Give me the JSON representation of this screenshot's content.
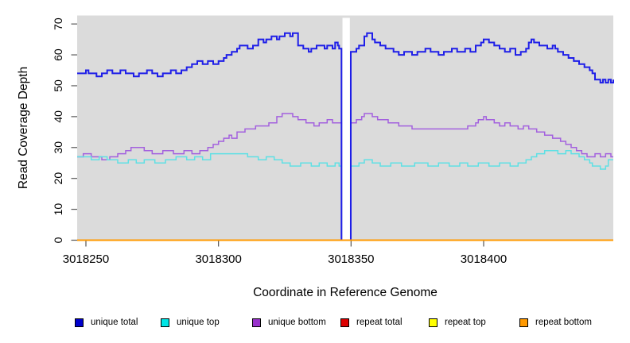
{
  "chart_data": {
    "type": "line",
    "subtype": "step",
    "title": "",
    "xlabel": "Coordinate in Reference Genome",
    "ylabel": "Read Coverage Depth",
    "xlim": [
      3018246.7,
      3018448.9
    ],
    "ylim": [
      0,
      73
    ],
    "x_ticks": [
      3018250,
      3018300,
      3018350,
      3018400
    ],
    "y_ticks": [
      0,
      10,
      20,
      30,
      40,
      50,
      60,
      70
    ],
    "grid": false,
    "legend_position": "bottom",
    "plot_bg": "#DBDBDB",
    "gap": {
      "x_start": 3018346.4,
      "x_end": 3018349.9,
      "note": "white no-data band; unique series drop to 0 at its edges"
    },
    "series": [
      {
        "name": "unique total",
        "line_color": "#1E1EE8",
        "legend_color": "#0000CD",
        "width": 2,
        "steps": [
          [
            3018246.7,
            54
          ],
          [
            3018250,
            55
          ],
          [
            3018251,
            54
          ],
          [
            3018254,
            53
          ],
          [
            3018256,
            54
          ],
          [
            3018258,
            55
          ],
          [
            3018260,
            54
          ],
          [
            3018263,
            55
          ],
          [
            3018265,
            54
          ],
          [
            3018268,
            53
          ],
          [
            3018270,
            54
          ],
          [
            3018273,
            55
          ],
          [
            3018275,
            54
          ],
          [
            3018277,
            53
          ],
          [
            3018279,
            54
          ],
          [
            3018282,
            55
          ],
          [
            3018284,
            54
          ],
          [
            3018286,
            55
          ],
          [
            3018288,
            56
          ],
          [
            3018290,
            57
          ],
          [
            3018292,
            58
          ],
          [
            3018294,
            57
          ],
          [
            3018296,
            58
          ],
          [
            3018298,
            57
          ],
          [
            3018300,
            58
          ],
          [
            3018302,
            59
          ],
          [
            3018303,
            60
          ],
          [
            3018305,
            61
          ],
          [
            3018307,
            62
          ],
          [
            3018308,
            63
          ],
          [
            3018311,
            62
          ],
          [
            3018313,
            63
          ],
          [
            3018315,
            65
          ],
          [
            3018317,
            64
          ],
          [
            3018318,
            65
          ],
          [
            3018320,
            66
          ],
          [
            3018322,
            65
          ],
          [
            3018323,
            66
          ],
          [
            3018325,
            67
          ],
          [
            3018327,
            66
          ],
          [
            3018328,
            67
          ],
          [
            3018330,
            63
          ],
          [
            3018332,
            62
          ],
          [
            3018334,
            61
          ],
          [
            3018335,
            62
          ],
          [
            3018337,
            63
          ],
          [
            3018340,
            62
          ],
          [
            3018341,
            63
          ],
          [
            3018343,
            62
          ],
          [
            3018344,
            64
          ],
          [
            3018345,
            63
          ],
          [
            3018345.5,
            62
          ],
          [
            3018346.4,
            0
          ],
          [
            3018349.9,
            61
          ],
          [
            3018352,
            62
          ],
          [
            3018353,
            63
          ],
          [
            3018355,
            66
          ],
          [
            3018356,
            67
          ],
          [
            3018358,
            65
          ],
          [
            3018359,
            64
          ],
          [
            3018361,
            63
          ],
          [
            3018363,
            62
          ],
          [
            3018366,
            61
          ],
          [
            3018368,
            60
          ],
          [
            3018370,
            61
          ],
          [
            3018373,
            60
          ],
          [
            3018375,
            61
          ],
          [
            3018378,
            62
          ],
          [
            3018380,
            61
          ],
          [
            3018383,
            60
          ],
          [
            3018385,
            61
          ],
          [
            3018388,
            62
          ],
          [
            3018390,
            61
          ],
          [
            3018393,
            62
          ],
          [
            3018395,
            61
          ],
          [
            3018397,
            63
          ],
          [
            3018399,
            64
          ],
          [
            3018400,
            65
          ],
          [
            3018402,
            64
          ],
          [
            3018404,
            63
          ],
          [
            3018406,
            62
          ],
          [
            3018408,
            61
          ],
          [
            3018410,
            62
          ],
          [
            3018412,
            60
          ],
          [
            3018414,
            61
          ],
          [
            3018416,
            62
          ],
          [
            3018417,
            64
          ],
          [
            3018418,
            65
          ],
          [
            3018419,
            64
          ],
          [
            3018421,
            63
          ],
          [
            3018424,
            62
          ],
          [
            3018426,
            63
          ],
          [
            3018427,
            62
          ],
          [
            3018428,
            61
          ],
          [
            3018430,
            60
          ],
          [
            3018432,
            59
          ],
          [
            3018434,
            58
          ],
          [
            3018436,
            57
          ],
          [
            3018438,
            56
          ],
          [
            3018440,
            55
          ],
          [
            3018441,
            54
          ],
          [
            3018442,
            52
          ],
          [
            3018444,
            51
          ],
          [
            3018445,
            52
          ],
          [
            3018446,
            51
          ],
          [
            3018447,
            52
          ],
          [
            3018448,
            51
          ],
          [
            3018448.9,
            52
          ]
        ]
      },
      {
        "name": "unique top",
        "line_color": "#5FE0E4",
        "legend_color": "#00E5E5",
        "width": 1.5,
        "steps": [
          [
            3018246.7,
            27
          ],
          [
            3018252,
            26
          ],
          [
            3018255,
            27
          ],
          [
            3018258,
            26
          ],
          [
            3018262,
            25
          ],
          [
            3018266,
            26
          ],
          [
            3018269,
            25
          ],
          [
            3018272,
            26
          ],
          [
            3018276,
            25
          ],
          [
            3018280,
            26
          ],
          [
            3018284,
            27
          ],
          [
            3018288,
            26
          ],
          [
            3018291,
            27
          ],
          [
            3018294,
            26
          ],
          [
            3018297,
            28
          ],
          [
            3018311,
            27
          ],
          [
            3018315,
            26
          ],
          [
            3018318,
            27
          ],
          [
            3018321,
            26
          ],
          [
            3018324,
            25
          ],
          [
            3018327,
            24
          ],
          [
            3018331,
            25
          ],
          [
            3018335,
            24
          ],
          [
            3018338,
            25
          ],
          [
            3018341,
            24
          ],
          [
            3018344,
            25
          ],
          [
            3018345.5,
            24
          ],
          [
            3018346.4,
            0
          ],
          [
            3018349.9,
            24
          ],
          [
            3018353,
            25
          ],
          [
            3018355,
            26
          ],
          [
            3018358,
            25
          ],
          [
            3018361,
            24
          ],
          [
            3018365,
            25
          ],
          [
            3018369,
            24
          ],
          [
            3018374,
            25
          ],
          [
            3018379,
            24
          ],
          [
            3018383,
            25
          ],
          [
            3018387,
            24
          ],
          [
            3018391,
            25
          ],
          [
            3018394,
            24
          ],
          [
            3018398,
            25
          ],
          [
            3018402,
            24
          ],
          [
            3018406,
            25
          ],
          [
            3018410,
            24
          ],
          [
            3018413,
            25
          ],
          [
            3018416,
            26
          ],
          [
            3018418,
            27
          ],
          [
            3018420,
            28
          ],
          [
            3018423,
            29
          ],
          [
            3018428,
            28
          ],
          [
            3018431,
            29
          ],
          [
            3018433,
            28
          ],
          [
            3018436,
            27
          ],
          [
            3018438,
            26
          ],
          [
            3018440,
            25
          ],
          [
            3018441,
            24
          ],
          [
            3018444,
            23
          ],
          [
            3018446,
            24
          ],
          [
            3018447,
            26
          ]
        ]
      },
      {
        "name": "unique bottom",
        "line_color": "#A361DE",
        "legend_color": "#9932CC",
        "width": 1.5,
        "steps": [
          [
            3018246.7,
            27
          ],
          [
            3018249,
            28
          ],
          [
            3018252,
            27
          ],
          [
            3018256,
            26
          ],
          [
            3018259,
            27
          ],
          [
            3018262,
            28
          ],
          [
            3018265,
            29
          ],
          [
            3018267,
            30
          ],
          [
            3018272,
            29
          ],
          [
            3018275,
            28
          ],
          [
            3018279,
            29
          ],
          [
            3018283,
            28
          ],
          [
            3018287,
            29
          ],
          [
            3018290,
            28
          ],
          [
            3018293,
            29
          ],
          [
            3018296,
            30
          ],
          [
            3018298,
            31
          ],
          [
            3018300,
            32
          ],
          [
            3018302,
            33
          ],
          [
            3018304,
            34
          ],
          [
            3018305,
            33
          ],
          [
            3018307,
            35
          ],
          [
            3018310,
            36
          ],
          [
            3018314,
            37
          ],
          [
            3018319,
            38
          ],
          [
            3018322,
            40
          ],
          [
            3018324,
            41
          ],
          [
            3018328,
            40
          ],
          [
            3018330,
            39
          ],
          [
            3018333,
            38
          ],
          [
            3018336,
            37
          ],
          [
            3018338,
            38
          ],
          [
            3018341,
            39
          ],
          [
            3018343,
            38
          ],
          [
            3018346.4,
            0
          ],
          [
            3018349.9,
            38
          ],
          [
            3018352,
            39
          ],
          [
            3018354,
            40
          ],
          [
            3018355,
            41
          ],
          [
            3018358,
            40
          ],
          [
            3018360,
            39
          ],
          [
            3018364,
            38
          ],
          [
            3018368,
            37
          ],
          [
            3018373,
            36
          ],
          [
            3018394,
            37
          ],
          [
            3018397,
            38
          ],
          [
            3018398,
            39
          ],
          [
            3018400,
            40
          ],
          [
            3018401,
            39
          ],
          [
            3018404,
            38
          ],
          [
            3018406,
            37
          ],
          [
            3018408,
            38
          ],
          [
            3018410,
            37
          ],
          [
            3018413,
            36
          ],
          [
            3018415,
            37
          ],
          [
            3018417,
            36
          ],
          [
            3018420,
            35
          ],
          [
            3018423,
            34
          ],
          [
            3018426,
            33
          ],
          [
            3018429,
            32
          ],
          [
            3018431,
            31
          ],
          [
            3018433,
            30
          ],
          [
            3018435,
            29
          ],
          [
            3018437,
            28
          ],
          [
            3018439,
            27
          ],
          [
            3018442,
            28
          ],
          [
            3018444,
            27
          ],
          [
            3018446,
            28
          ],
          [
            3018448,
            27
          ]
        ]
      },
      {
        "name": "repeat total",
        "line_color": "#DD0000",
        "legend_color": "#DD0000",
        "width": 1.5,
        "steps": [
          [
            3018246.7,
            0
          ]
        ]
      },
      {
        "name": "repeat top",
        "line_color": "#FFFF00",
        "legend_color": "#FFFF00",
        "width": 1.5,
        "steps": [
          [
            3018246.7,
            0
          ]
        ]
      },
      {
        "name": "repeat bottom",
        "line_color": "#FF9900",
        "legend_color": "#FF9900",
        "width": 2,
        "steps": [
          [
            3018246.7,
            0
          ]
        ]
      }
    ]
  }
}
